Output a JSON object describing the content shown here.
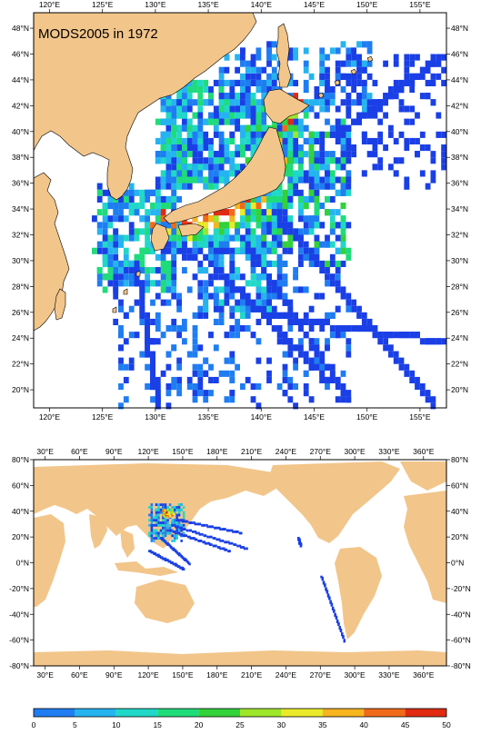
{
  "title": "MODS2005 in 1972",
  "colors": {
    "land": "#f2c58a",
    "ocean": "#ffffff",
    "frame": "#000000",
    "scale": [
      "#1a3fe6",
      "#1f7df2",
      "#25b4f0",
      "#20d8c8",
      "#1fdc7a",
      "#32d23a",
      "#9ee62a",
      "#eaea2a",
      "#f7b51e",
      "#f06a18",
      "#e02a12"
    ]
  },
  "regional_map": {
    "lon_labels_top": [
      "120°E",
      "125°E",
      "130°E",
      "135°E",
      "140°E",
      "145°E",
      "150°E",
      "155°E"
    ],
    "lon_labels_bottom": [
      "120°E",
      "125°E",
      "130°E",
      "135°E",
      "140°E",
      "145°E",
      "150°E",
      "155°E"
    ],
    "lat_labels_left": [
      "48°N",
      "46°N",
      "44°N",
      "42°N",
      "40°N",
      "38°N",
      "36°N",
      "34°N",
      "32°N",
      "30°N",
      "28°N",
      "26°N",
      "24°N",
      "22°N",
      "20°N"
    ],
    "lat_labels_right": [
      "48°N",
      "46°N",
      "44°N",
      "42°N",
      "40°N",
      "38°N",
      "36°N",
      "34°N",
      "32°N",
      "30°N",
      "28°N",
      "26°N",
      "24°N",
      "22°N",
      "20°N"
    ]
  },
  "global_map": {
    "lon_labels_top": [
      "30°E",
      "60°E",
      "90°E",
      "120°E",
      "150°E",
      "180°E",
      "210°E",
      "240°E",
      "270°E",
      "300°E",
      "330°E",
      "360°E"
    ],
    "lon_labels_bottom": [
      "30°E",
      "60°E",
      "90°E",
      "120°E",
      "150°E",
      "180°E",
      "210°E",
      "240°E",
      "270°E",
      "300°E",
      "330°E",
      "360°E"
    ],
    "lat_labels_left": [
      "80°N",
      "60°N",
      "40°N",
      "20°N",
      "0°N",
      "-20°N",
      "-40°N",
      "-60°N",
      "-80°N"
    ],
    "lat_labels_right": [
      "80°N",
      "60°N",
      "40°N",
      "20°N",
      "0°N",
      "-20°N",
      "-40°N",
      "-60°N",
      "-80°N"
    ]
  },
  "colorbar": {
    "labels": [
      "0",
      "5",
      "10",
      "15",
      "20",
      "25",
      "30",
      "35",
      "40",
      "45",
      "50"
    ]
  }
}
